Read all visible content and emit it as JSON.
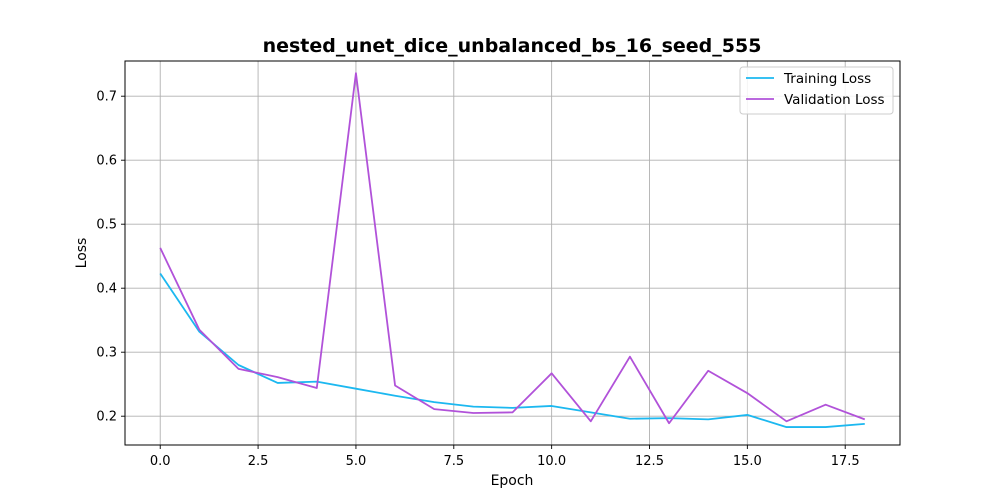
{
  "chart_data": {
    "type": "line",
    "title": "nested_unet_dice_unbalanced_bs_16_seed_555",
    "xlabel": "Epoch",
    "ylabel": "Loss",
    "xlim": [
      -0.9,
      18.9
    ],
    "ylim": [
      0.155,
      0.755
    ],
    "x_ticks": [
      0.0,
      2.5,
      5.0,
      7.5,
      10.0,
      12.5,
      15.0,
      17.5
    ],
    "x_tick_labels": [
      "0.0",
      "2.5",
      "5.0",
      "7.5",
      "10.0",
      "12.5",
      "15.0",
      "17.5"
    ],
    "y_ticks": [
      0.2,
      0.3,
      0.4,
      0.5,
      0.6,
      0.7
    ],
    "y_tick_labels": [
      "0.2",
      "0.3",
      "0.4",
      "0.5",
      "0.6",
      "0.7"
    ],
    "grid": true,
    "legend_position": "top-right",
    "x": [
      0,
      1,
      2,
      3,
      4,
      5,
      6,
      7,
      8,
      9,
      10,
      11,
      12,
      13,
      14,
      15,
      16,
      17,
      18
    ],
    "series": [
      {
        "name": "Training Loss",
        "color": "#1cb8f0",
        "values": [
          0.423,
          0.332,
          0.28,
          0.252,
          0.254,
          0.243,
          0.232,
          0.222,
          0.215,
          0.213,
          0.216,
          0.206,
          0.196,
          0.197,
          0.195,
          0.202,
          0.183,
          0.183,
          0.188
        ]
      },
      {
        "name": "Validation Loss",
        "color": "#b152d9",
        "values": [
          0.463,
          0.335,
          0.274,
          0.261,
          0.244,
          0.736,
          0.248,
          0.211,
          0.205,
          0.206,
          0.267,
          0.192,
          0.293,
          0.189,
          0.271,
          0.236,
          0.192,
          0.218,
          0.195
        ]
      }
    ]
  }
}
